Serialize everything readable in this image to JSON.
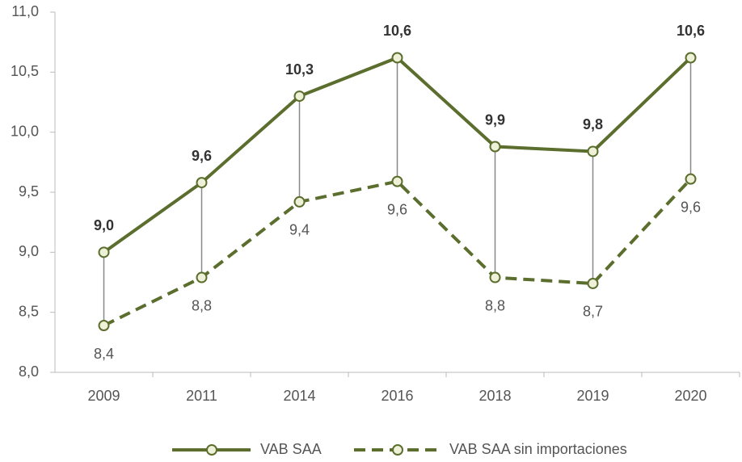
{
  "chart_data": {
    "type": "line",
    "categories": [
      "2009",
      "2011",
      "2014",
      "2016",
      "2018",
      "2019",
      "2020"
    ],
    "series": [
      {
        "name": "VAB SAA",
        "color": "#5b6e2d",
        "dashed": false,
        "values": [
          9.0,
          9.58,
          10.3,
          10.62,
          9.88,
          9.84,
          10.62
        ],
        "value_labels": [
          "9,0",
          "9,6",
          "10,3",
          "10,6",
          "9,9",
          "9,8",
          "10,6"
        ]
      },
      {
        "name": "VAB SAA sin importaciones",
        "color": "#5b6e2d",
        "dashed": true,
        "values": [
          8.39,
          8.79,
          9.42,
          9.59,
          8.79,
          8.74,
          9.61
        ],
        "value_labels": [
          "8,4",
          "8,8",
          "9,4",
          "9,6",
          "8,8",
          "8,7",
          "9,6"
        ]
      }
    ],
    "ylim": [
      8,
      11
    ],
    "yticks": [
      {
        "value": 8,
        "label": "8,0"
      },
      {
        "value": 8.5,
        "label": "8,5"
      },
      {
        "value": 9,
        "label": "9,0"
      },
      {
        "value": 9.5,
        "label": "9,5"
      },
      {
        "value": 10,
        "label": "10,0"
      },
      {
        "value": 10.5,
        "label": "10,5"
      },
      {
        "value": 11,
        "label": "11,0"
      }
    ],
    "legend": "bottom"
  }
}
